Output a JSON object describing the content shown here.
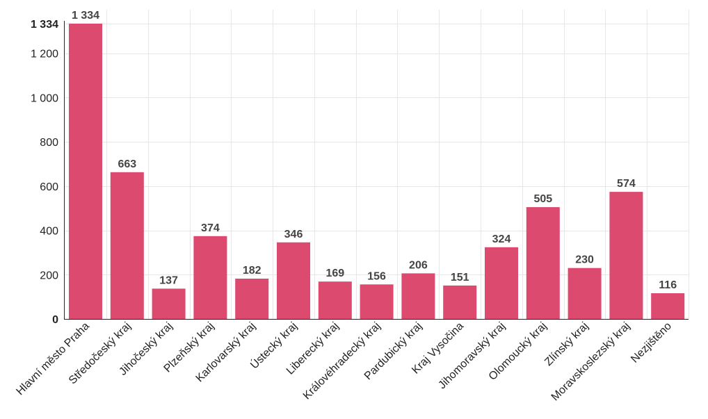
{
  "chart_data": {
    "type": "bar",
    "categories": [
      "Hlavní město Praha",
      "Středočeský kraj",
      "Jihočeský kraj",
      "Plzeňský kraj",
      "Karlovarský kraj",
      "Ústecký kraj",
      "Liberecký kraj",
      "Královéhradecký kraj",
      "Pardubický kraj",
      "Kraj Vysočina",
      "Jihomoravský kraj",
      "Olomoucký kraj",
      "Zlínský kraj",
      "Moravskoslezský kraj",
      "Nezjištěno"
    ],
    "values": [
      1334,
      663,
      137,
      374,
      182,
      346,
      169,
      156,
      206,
      151,
      324,
      505,
      230,
      574,
      116
    ],
    "value_labels": [
      "1 334",
      "663",
      "137",
      "374",
      "182",
      "346",
      "169",
      "156",
      "206",
      "151",
      "324",
      "505",
      "230",
      "574",
      "116"
    ],
    "yticks": [
      {
        "value": 0,
        "label": "0",
        "bold": true
      },
      {
        "value": 200,
        "label": "200",
        "bold": false
      },
      {
        "value": 400,
        "label": "400",
        "bold": false
      },
      {
        "value": 600,
        "label": "600",
        "bold": false
      },
      {
        "value": 800,
        "label": "800",
        "bold": false
      },
      {
        "value": 1000,
        "label": "1 000",
        "bold": false
      },
      {
        "value": 1200,
        "label": "1 200",
        "bold": false
      },
      {
        "value": 1334,
        "label": "1 334",
        "bold": true
      }
    ],
    "ylim": [
      0,
      1334
    ],
    "grid": true,
    "bar_color": "#dc4a70",
    "title": "",
    "xlabel": "",
    "ylabel": ""
  }
}
